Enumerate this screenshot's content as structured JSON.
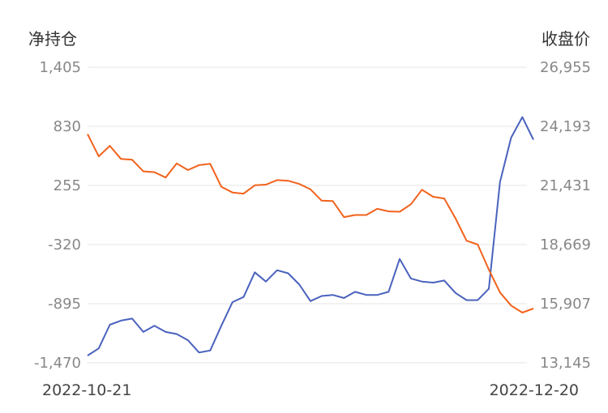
{
  "chart_data": {
    "type": "line",
    "title": "",
    "y_left_label": "净持仓",
    "y_right_label": "收盘价",
    "y_left_ticks": [
      "1,405",
      "830",
      "255",
      "-320",
      "-895",
      "-1,470"
    ],
    "y_right_ticks": [
      "26,955",
      "24,193",
      "21,431",
      "18,669",
      "15,907",
      "13,145"
    ],
    "y_left_range": [
      -1470,
      1405
    ],
    "y_right_range": [
      13145,
      26955
    ],
    "x_start_label": "2022-10-21",
    "x_end_label": "2022-12-20",
    "grid": true,
    "colors": {
      "net_position": "#4a62bd",
      "close_price": "#f2621c"
    },
    "series": [
      {
        "key": "net_position",
        "axis": "left",
        "values": [
          -1400,
          -1330,
          -1100,
          -1060,
          -1040,
          -1170,
          -1110,
          -1170,
          -1190,
          -1250,
          -1370,
          -1350,
          -1110,
          -880,
          -830,
          -590,
          -680,
          -570,
          -600,
          -710,
          -870,
          -820,
          -810,
          -840,
          -780,
          -810,
          -810,
          -780,
          -460,
          -650,
          -680,
          -690,
          -670,
          -790,
          -860,
          -860,
          -750,
          290,
          720,
          920,
          700
        ]
      },
      {
        "key": "close_price",
        "axis": "right",
        "values": [
          23830,
          22790,
          23280,
          22670,
          22630,
          22090,
          22050,
          21800,
          22460,
          22150,
          22380,
          22440,
          21370,
          21100,
          21050,
          21440,
          21470,
          21680,
          21650,
          21500,
          21250,
          20720,
          20700,
          19950,
          20050,
          20050,
          20340,
          20220,
          20200,
          20550,
          21230,
          20900,
          20820,
          19900,
          18850,
          18670,
          17500,
          16430,
          15820,
          15490,
          15680
        ]
      }
    ]
  }
}
